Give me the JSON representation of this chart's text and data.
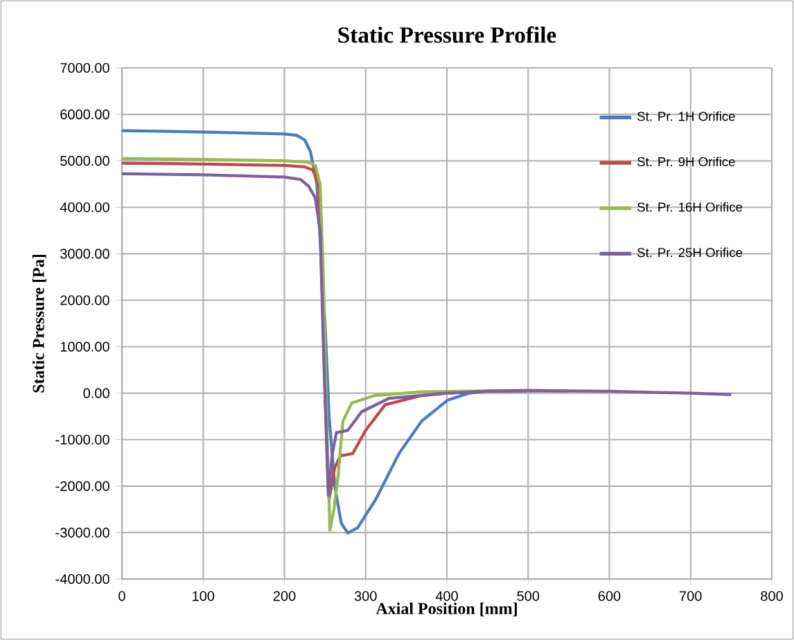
{
  "chart_data": {
    "type": "line",
    "title": "Static Pressure Profile",
    "xlabel": "Axial Position  [mm]",
    "ylabel": "Static Pressure [Pa]",
    "xlim": [
      0,
      800
    ],
    "xticks": [
      0,
      100,
      200,
      300,
      400,
      500,
      600,
      700,
      800
    ],
    "ylim": [
      -4000,
      7000
    ],
    "yticks": [
      {
        "value": 7000,
        "label": "7000.00"
      },
      {
        "value": 6000,
        "label": "6000.00"
      },
      {
        "value": 5000,
        "label": "5000.00"
      },
      {
        "value": 4000,
        "label": "4000.00"
      },
      {
        "value": 3000,
        "label": "3000.00"
      },
      {
        "value": 2000,
        "label": "2000.00"
      },
      {
        "value": 1000,
        "label": "1000.00"
      },
      {
        "value": 0,
        "label": "0.00"
      },
      {
        "value": -1000,
        "label": "-1000.00"
      },
      {
        "value": -2000,
        "label": "-2000.00"
      },
      {
        "value": -3000,
        "label": "-3000.00"
      },
      {
        "value": -4000,
        "label": "-4000.00"
      }
    ],
    "grid": true,
    "legend": "top right",
    "marker": "none",
    "line_style": "solid",
    "series": [
      {
        "name": "St. Pr. 1H Orifice",
        "color": "#4a7ebb",
        "x": [
          0,
          100,
          200,
          215,
          225,
          232,
          240,
          245,
          250,
          255,
          262,
          270,
          278,
          290,
          312,
          341,
          369,
          401,
          427,
          450,
          500
        ],
        "values": [
          5650,
          5620,
          5580,
          5550,
          5450,
          5200,
          4500,
          3000,
          1500,
          -500,
          -2000,
          -2800,
          -3010,
          -2900,
          -2300,
          -1300,
          -600,
          -150,
          0,
          40,
          50
        ]
      },
      {
        "name": "St. Pr. 9H Orifice",
        "color": "#be4b48",
        "x": [
          0,
          100,
          200,
          225,
          235,
          242,
          246,
          250,
          255,
          262,
          269,
          284,
          300,
          324,
          369,
          400,
          450,
          500,
          550
        ],
        "values": [
          4950,
          4930,
          4900,
          4870,
          4800,
          4500,
          2500,
          0,
          -2300,
          -1600,
          -1350,
          -1300,
          -800,
          -250,
          -50,
          0,
          50,
          60,
          50
        ]
      },
      {
        "name": "St. Pr. 16H Orifice",
        "color": "#98b954",
        "x": [
          0,
          100,
          200,
          230,
          238,
          244,
          248,
          252,
          256,
          261,
          266,
          272,
          283,
          311,
          369,
          450
        ],
        "values": [
          5050,
          5030,
          5000,
          4970,
          4900,
          4500,
          2500,
          -500,
          -2950,
          -2500,
          -1800,
          -600,
          -210,
          -50,
          30,
          50
        ]
      },
      {
        "name": "St. Pr. 25H Orifice",
        "color": "#7d60a0",
        "x": [
          0,
          100,
          200,
          220,
          230,
          238,
          244,
          248,
          254,
          259,
          264,
          278,
          295,
          329,
          400,
          450,
          500,
          550,
          600,
          650,
          700,
          750
        ],
        "values": [
          4720,
          4700,
          4650,
          4600,
          4450,
          4200,
          3500,
          1000,
          -2200,
          -1300,
          -850,
          -800,
          -400,
          -110,
          0,
          40,
          50,
          50,
          40,
          20,
          0,
          -30
        ]
      }
    ]
  }
}
